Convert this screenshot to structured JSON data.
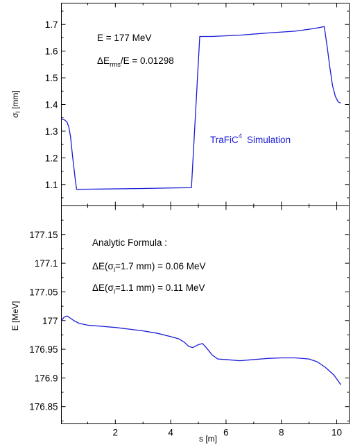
{
  "chart_data": [
    {
      "type": "line",
      "panel": "top",
      "ylabel_main": "σ",
      "ylabel_sub": "l",
      "ylabel_unit": " [mm]",
      "ylim": [
        1.02,
        1.78
      ],
      "xlim": [
        0.05,
        10.45
      ],
      "yticks": [
        1.1,
        1.2,
        1.3,
        1.4,
        1.5,
        1.6,
        1.7
      ],
      "ytick_labels": [
        "1.1",
        "1.2",
        "1.3",
        "1.4",
        "1.5",
        "1.6",
        "1.7"
      ],
      "annotations": {
        "energy": "E = 177 MeV",
        "spread_prefix": "ΔE",
        "spread_sub": "rms",
        "spread_suffix": "/E = 0.01298",
        "sim_name": "TraFiC",
        "sim_sup": "4",
        "sim_suffix": "Simulation"
      },
      "series": [
        {
          "x": [
            0.05,
            0.15,
            0.25,
            0.32,
            0.38,
            0.45,
            0.55,
            0.6,
            1.5,
            3.0,
            4.0,
            4.75,
            5.05,
            5.5,
            6.5,
            7.5,
            8.5,
            9.2,
            9.55,
            9.65,
            9.75,
            9.85,
            9.95,
            10.05,
            10.15
          ],
          "y": [
            1.345,
            1.343,
            1.335,
            1.315,
            1.28,
            1.21,
            1.12,
            1.082,
            1.083,
            1.085,
            1.087,
            1.088,
            1.655,
            1.655,
            1.66,
            1.668,
            1.675,
            1.685,
            1.692,
            1.62,
            1.54,
            1.47,
            1.43,
            1.41,
            1.405
          ]
        }
      ]
    },
    {
      "type": "line",
      "panel": "bottom",
      "xlabel": "s [m]",
      "ylabel": "E [MeV]",
      "ylim": [
        176.82,
        177.2
      ],
      "xlim": [
        0.05,
        10.45
      ],
      "xticks": [
        2,
        4,
        6,
        8,
        10
      ],
      "xtick_labels": [
        "2",
        "4",
        "6",
        "8",
        "10"
      ],
      "yticks": [
        176.85,
        176.9,
        176.95,
        177.0,
        177.05,
        177.1,
        177.15
      ],
      "ytick_labels": [
        "176.85",
        "176.9",
        "176.95",
        "177",
        "177.05",
        "177.1",
        "177.15"
      ],
      "annotations": {
        "title": "Analytic Formula :",
        "line1_prefix": "ΔE(σ",
        "line1_sub": "l",
        "line1_suffix": "=1.7 mm) = 0.06 MeV",
        "line2_prefix": "ΔE(σ",
        "line2_sub": "l",
        "line2_suffix": "=1.1 mm) = 0.11 MeV"
      },
      "series": [
        {
          "x": [
            0.05,
            0.15,
            0.25,
            0.35,
            0.5,
            0.7,
            1.0,
            1.5,
            2.0,
            2.5,
            3.0,
            3.5,
            4.0,
            4.3,
            4.5,
            4.65,
            4.8,
            5.0,
            5.15,
            5.3,
            5.5,
            5.7,
            6.0,
            6.5,
            7.0,
            7.5,
            8.0,
            8.5,
            9.0,
            9.3,
            9.6,
            9.9,
            10.15
          ],
          "y": [
            177.0,
            177.006,
            177.008,
            177.005,
            177.0,
            176.995,
            176.992,
            176.99,
            176.988,
            176.985,
            176.982,
            176.978,
            176.972,
            176.968,
            176.962,
            176.955,
            176.953,
            176.958,
            176.96,
            176.952,
            176.94,
            176.933,
            176.932,
            176.93,
            176.932,
            176.934,
            176.935,
            176.935,
            176.933,
            176.928,
            176.918,
            176.905,
            176.888
          ]
        }
      ]
    }
  ]
}
